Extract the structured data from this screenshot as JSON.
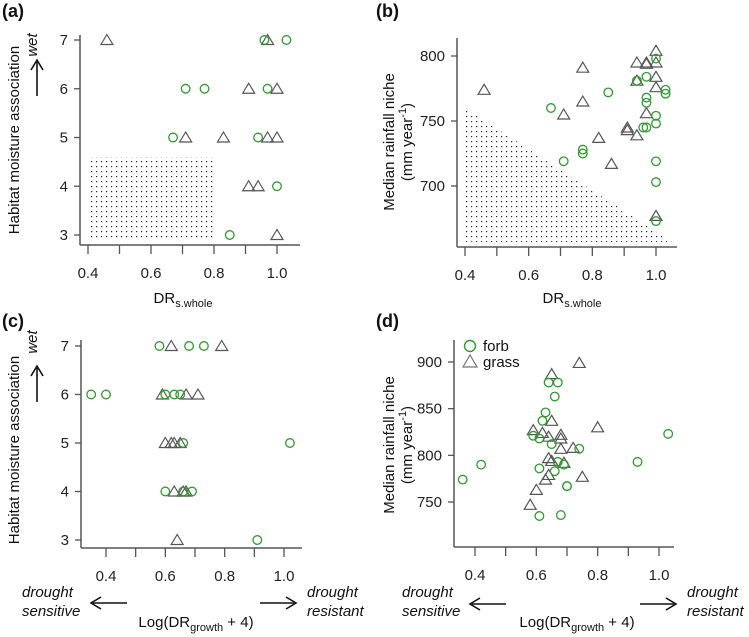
{
  "colors": {
    "forb": "#2f9a2f",
    "grass": "#555555",
    "axis": "#555555"
  },
  "legend": {
    "forb": "forb",
    "grass": "grass"
  },
  "annotations": {
    "wet": "wet",
    "drought_sensitive": [
      "drought",
      "sensitive"
    ],
    "drought_resistant": [
      "drought",
      "resistant"
    ]
  },
  "chart_data": [
    {
      "panel": "(a)",
      "type": "scatter",
      "xlabel_main": "DR",
      "xlabel_sub": "s.whole",
      "ylabel": "Habitat moisture association",
      "xlim": [
        0.38,
        1.07
      ],
      "ylim": [
        2.9,
        7.1
      ],
      "xticks": [
        0.4,
        0.5,
        0.6,
        0.7,
        0.8,
        0.9,
        1.0
      ],
      "xtick_labels": [
        "0.4",
        "0.6",
        "0.8",
        "1.0"
      ],
      "ytick_labels": [
        "3",
        "4",
        "5",
        "6",
        "7"
      ],
      "shaded_region": [
        [
          0.4,
          2.95
        ],
        [
          0.8,
          2.95
        ],
        [
          0.8,
          4.6
        ],
        [
          0.4,
          4.6
        ]
      ],
      "series": [
        {
          "name": "grass",
          "marker": "triangle",
          "points": [
            [
              0.46,
              7
            ],
            [
              0.97,
              7
            ],
            [
              0.91,
              6
            ],
            [
              1.0,
              6
            ],
            [
              0.71,
              5
            ],
            [
              0.83,
              5
            ],
            [
              0.97,
              5
            ],
            [
              1.0,
              5
            ],
            [
              0.91,
              4
            ],
            [
              0.94,
              4
            ],
            [
              1.0,
              3
            ]
          ]
        },
        {
          "name": "forb",
          "marker": "circle",
          "points": [
            [
              0.96,
              7
            ],
            [
              1.03,
              7
            ],
            [
              0.71,
              6
            ],
            [
              0.77,
              6
            ],
            [
              0.97,
              6
            ],
            [
              0.67,
              5
            ],
            [
              0.94,
              5
            ],
            [
              1.0,
              4
            ],
            [
              0.85,
              3
            ]
          ]
        }
      ]
    },
    {
      "panel": "(b)",
      "type": "scatter",
      "xlabel_main": "DR",
      "xlabel_sub": "s.whole",
      "ylabel": "Median rainfall niche",
      "ylabel_unit": "(mm year",
      "ylabel_unit_sup": "-1",
      "ylabel_unit_end": ")",
      "xlim": [
        0.38,
        1.07
      ],
      "ylim": [
        653,
        815
      ],
      "xticks": [
        0.4,
        0.5,
        0.6,
        0.7,
        0.8,
        0.9,
        1.0
      ],
      "xtick_labels": [
        "0.4",
        "0.6",
        "0.8",
        "1.0"
      ],
      "ytick_labels": [
        "700",
        "750",
        "800"
      ],
      "shaded_region": [
        [
          0.4,
          760
        ],
        [
          1.05,
          657
        ],
        [
          0.4,
          657
        ]
      ],
      "series": [
        {
          "name": "grass",
          "marker": "triangle",
          "points": [
            [
              0.46,
              774
            ],
            [
              0.77,
              791
            ],
            [
              0.77,
              765
            ],
            [
              0.71,
              755
            ],
            [
              0.82,
              737
            ],
            [
              0.86,
              717
            ],
            [
              0.91,
              745
            ],
            [
              0.91,
              743
            ],
            [
              0.94,
              739
            ],
            [
              0.94,
              795
            ],
            [
              0.97,
              795
            ],
            [
              0.97,
              794
            ],
            [
              0.94,
              781
            ],
            [
              0.97,
              756
            ],
            [
              1.0,
              804
            ],
            [
              1.0,
              795
            ],
            [
              1.0,
              784
            ],
            [
              1.0,
              776
            ],
            [
              1.0,
              677
            ]
          ]
        },
        {
          "name": "forb",
          "marker": "circle",
          "points": [
            [
              0.67,
              760
            ],
            [
              0.71,
              719
            ],
            [
              0.77,
              728
            ],
            [
              0.77,
              725
            ],
            [
              0.85,
              772
            ],
            [
              0.94,
              781
            ],
            [
              0.97,
              784
            ],
            [
              0.97,
              768
            ],
            [
              0.97,
              764
            ],
            [
              0.96,
              745
            ],
            [
              0.97,
              745
            ],
            [
              1.0,
              798
            ],
            [
              1.0,
              754
            ],
            [
              1.0,
              748
            ],
            [
              1.0,
              719
            ],
            [
              1.0,
              703
            ],
            [
              1.0,
              673
            ],
            [
              1.03,
              774
            ],
            [
              1.03,
              771
            ]
          ]
        }
      ]
    },
    {
      "panel": "(c)",
      "type": "scatter",
      "xlabel_main": "Log(DR",
      "xlabel_sub": "growth",
      "xlabel_end": " + 4)",
      "ylabel": "Habitat moisture association",
      "xlim": [
        0.33,
        1.07
      ],
      "ylim": [
        2.9,
        7.1
      ],
      "xticks": [
        0.4,
        0.5,
        0.6,
        0.7,
        0.8,
        0.9,
        1.0
      ],
      "xtick_labels": [
        "0.4",
        "0.6",
        "0.8",
        "1.0"
      ],
      "ytick_labels": [
        "3",
        "4",
        "5",
        "6",
        "7"
      ],
      "series": [
        {
          "name": "grass",
          "marker": "triangle",
          "points": [
            [
              0.62,
              7
            ],
            [
              0.79,
              7
            ],
            [
              0.59,
              6
            ],
            [
              0.67,
              6
            ],
            [
              0.71,
              6
            ],
            [
              0.6,
              5
            ],
            [
              0.62,
              5
            ],
            [
              0.63,
              5
            ],
            [
              0.65,
              5
            ],
            [
              0.63,
              4
            ],
            [
              0.66,
              4
            ],
            [
              0.67,
              4
            ],
            [
              0.64,
              3
            ]
          ]
        },
        {
          "name": "forb",
          "marker": "circle",
          "points": [
            [
              0.58,
              7
            ],
            [
              0.68,
              7
            ],
            [
              0.73,
              7
            ],
            [
              0.35,
              6
            ],
            [
              0.4,
              6
            ],
            [
              0.6,
              6
            ],
            [
              0.63,
              6
            ],
            [
              0.65,
              6
            ],
            [
              0.66,
              5
            ],
            [
              1.02,
              5
            ],
            [
              0.6,
              4
            ],
            [
              0.66,
              4
            ],
            [
              0.69,
              4
            ],
            [
              0.91,
              3
            ]
          ]
        }
      ]
    },
    {
      "panel": "(d)",
      "type": "scatter",
      "xlabel_main": "Log(DR",
      "xlabel_sub": "growth",
      "xlabel_end": " + 4)",
      "ylabel": "Median rainfall niche",
      "ylabel_unit": "(mm year",
      "ylabel_unit_sup": "-1",
      "ylabel_unit_end": ")",
      "xlim": [
        0.33,
        1.07
      ],
      "ylim": [
        702,
        908
      ],
      "xticks": [
        0.4,
        0.5,
        0.6,
        0.7,
        0.8,
        0.9,
        1.0
      ],
      "xtick_labels": [
        "0.4",
        "0.6",
        "0.8",
        "1.0"
      ],
      "ytick_labels": [
        "750",
        "800",
        "850",
        "900"
      ],
      "legend_position": "top-left",
      "series": [
        {
          "name": "grass",
          "marker": "triangle",
          "points": [
            [
              0.65,
              887
            ],
            [
              0.74,
              899
            ],
            [
              0.65,
              837
            ],
            [
              0.59,
              827
            ],
            [
              0.62,
              824
            ],
            [
              0.64,
              820
            ],
            [
              0.68,
              822
            ],
            [
              0.68,
              818
            ],
            [
              0.68,
              807
            ],
            [
              0.72,
              808
            ],
            [
              0.8,
              830
            ],
            [
              0.64,
              797
            ],
            [
              0.65,
              794
            ],
            [
              0.69,
              792
            ],
            [
              0.64,
              779
            ],
            [
              0.63,
              774
            ],
            [
              0.6,
              763
            ],
            [
              0.58,
              747
            ],
            [
              0.75,
              777
            ]
          ]
        },
        {
          "name": "forb",
          "marker": "circle",
          "points": [
            [
              0.36,
              774
            ],
            [
              0.42,
              790
            ],
            [
              0.64,
              878
            ],
            [
              0.67,
              878
            ],
            [
              0.66,
              863
            ],
            [
              0.63,
              846
            ],
            [
              0.62,
              837
            ],
            [
              0.59,
              821
            ],
            [
              0.61,
              818
            ],
            [
              0.65,
              812
            ],
            [
              0.74,
              807
            ],
            [
              0.67,
              793
            ],
            [
              0.69,
              790
            ],
            [
              0.61,
              786
            ],
            [
              0.66,
              783
            ],
            [
              0.7,
              767
            ],
            [
              0.7,
              767
            ],
            [
              0.61,
              735
            ],
            [
              0.68,
              736
            ],
            [
              1.03,
              823
            ],
            [
              0.93,
              793
            ]
          ]
        }
      ]
    }
  ]
}
